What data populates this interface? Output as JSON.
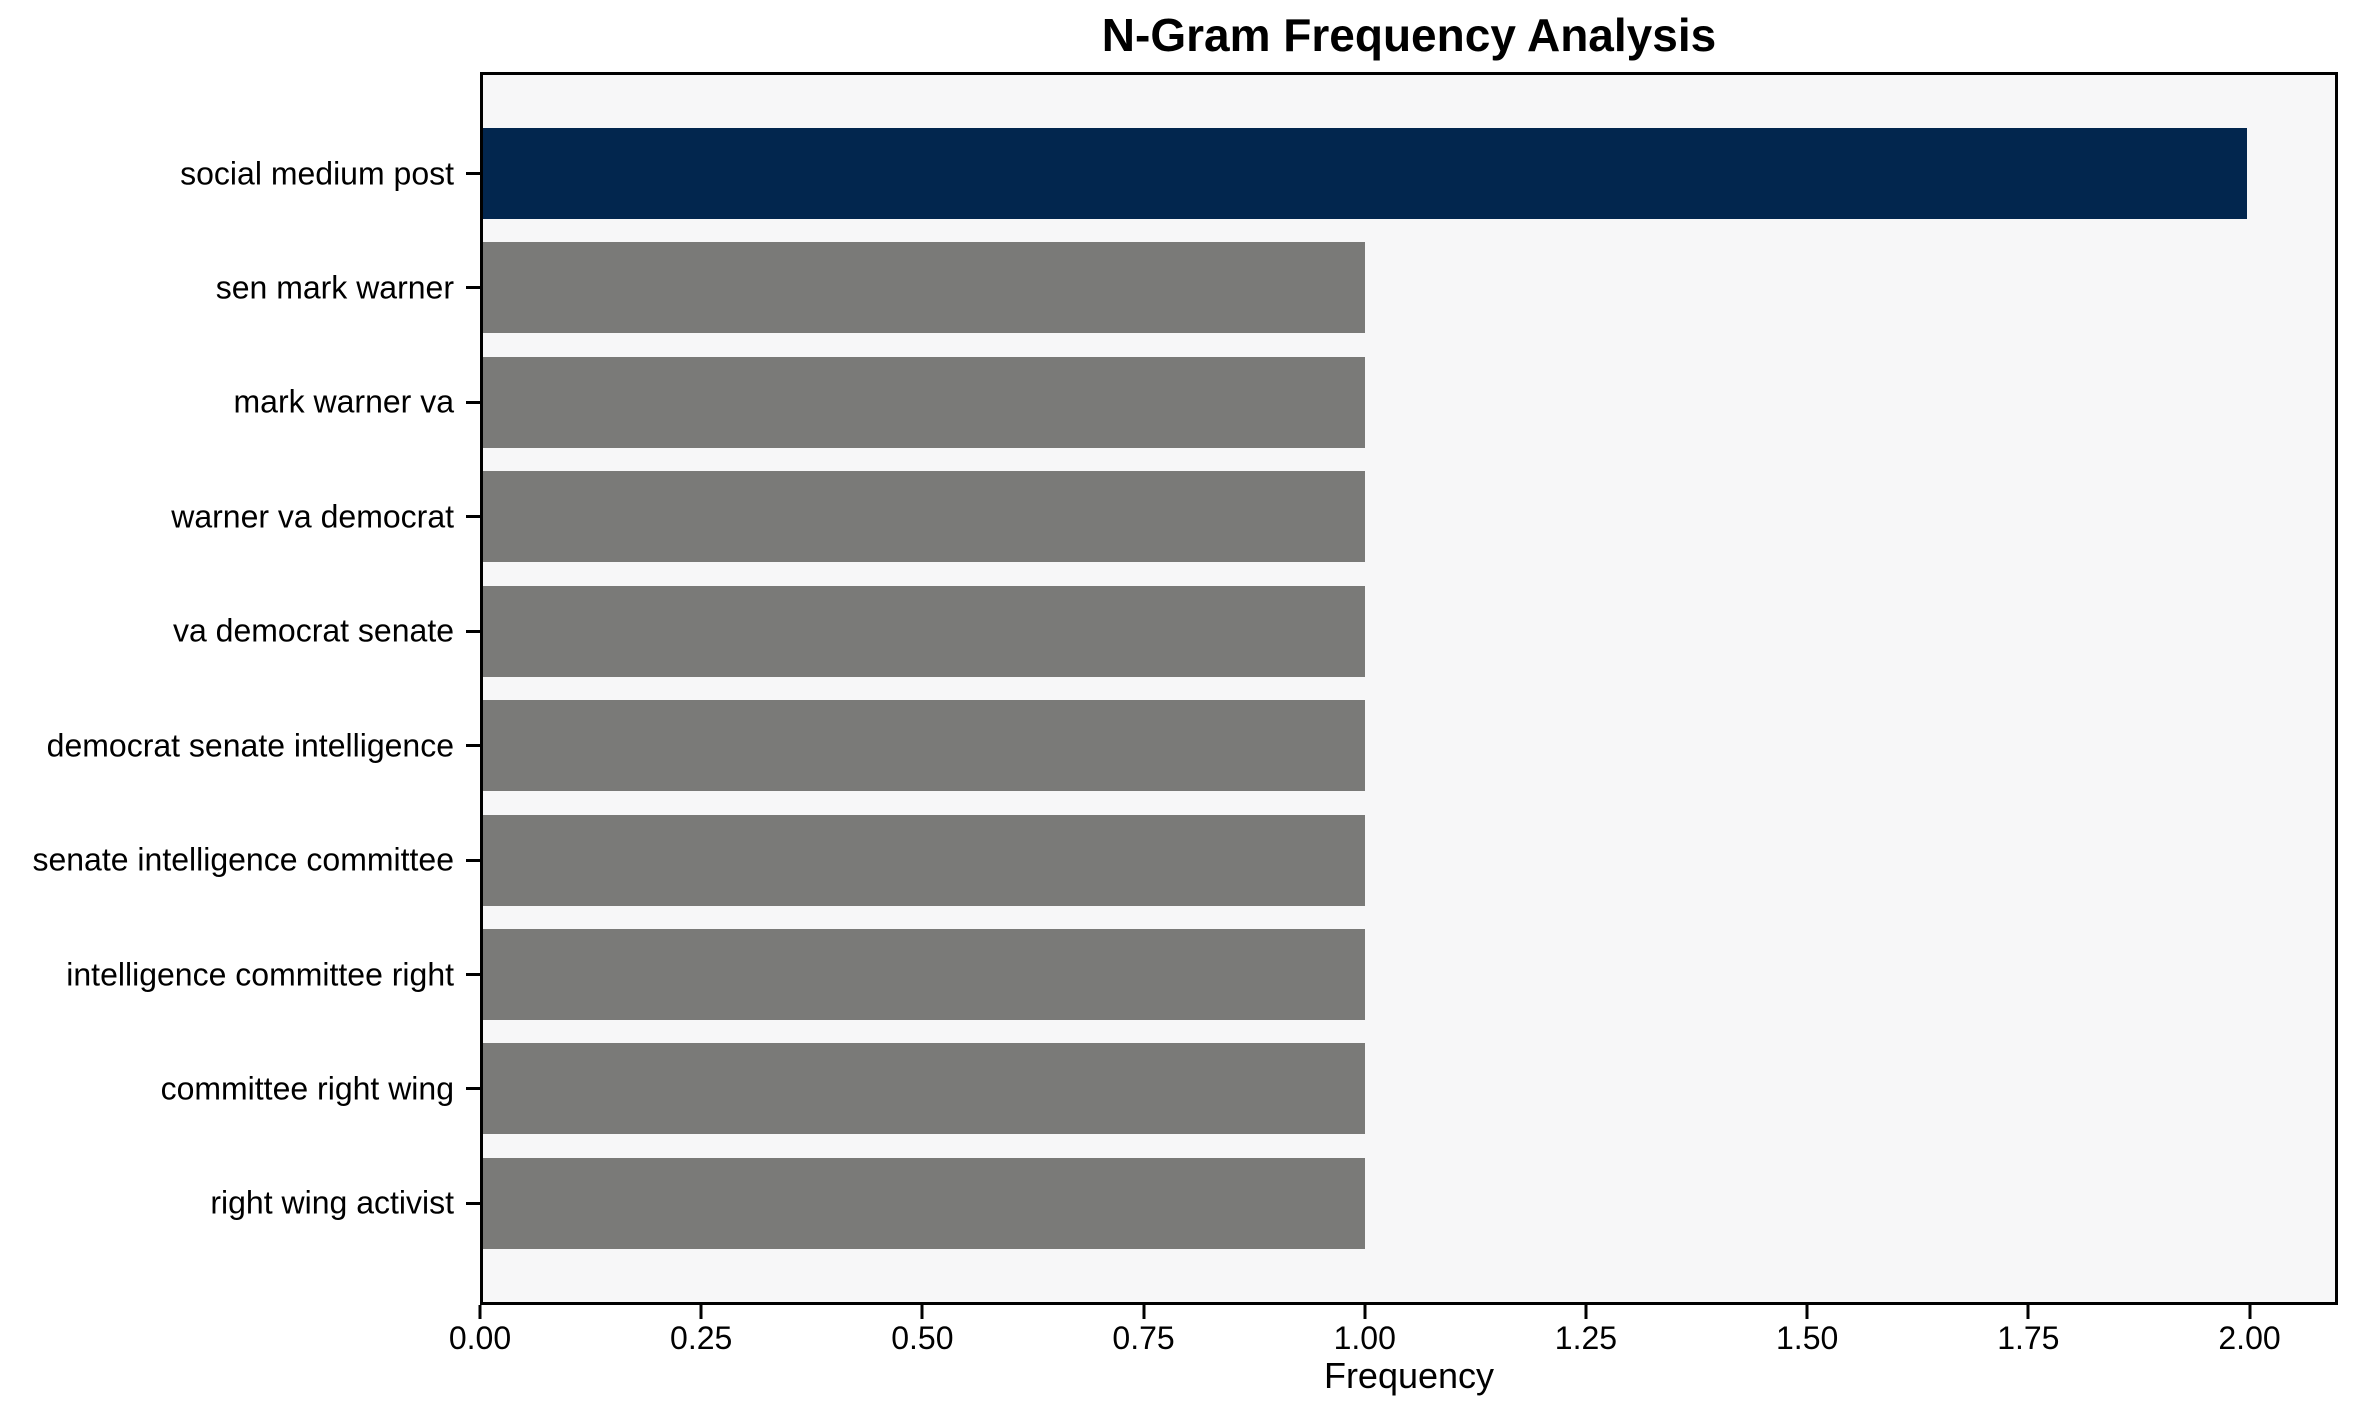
{
  "chart_data": {
    "type": "bar",
    "orientation": "horizontal",
    "title": "N-Gram Frequency Analysis",
    "xlabel": "Frequency",
    "ylabel": "",
    "categories": [
      "social medium post",
      "sen mark warner",
      "mark warner va",
      "warner va democrat",
      "va democrat senate",
      "democrat senate intelligence",
      "senate intelligence committee",
      "intelligence committee right",
      "committee right wing",
      "right wing activist"
    ],
    "values": [
      2,
      1,
      1,
      1,
      1,
      1,
      1,
      1,
      1,
      1
    ],
    "bar_colors": [
      "#02264e",
      "#7a7a78",
      "#7a7a78",
      "#7a7a78",
      "#7a7a78",
      "#7a7a78",
      "#7a7a78",
      "#7a7a78",
      "#7a7a78",
      "#7a7a78"
    ],
    "xlim": [
      0,
      2.1
    ],
    "xticks": [
      "0.00",
      "0.25",
      "0.50",
      "0.75",
      "1.00",
      "1.25",
      "1.50",
      "1.75",
      "2.00"
    ],
    "xtick_values": [
      0,
      0.25,
      0.5,
      0.75,
      1.0,
      1.25,
      1.5,
      1.75,
      2.0
    ],
    "grid": false,
    "legend_position": "none",
    "colors": {
      "highlight_bar": "#02264e",
      "default_bar": "#7a7a78",
      "axes_background": "#f7f7f8",
      "figure_background": "#ffffff",
      "spine": "#000000",
      "text": "#000000"
    }
  }
}
